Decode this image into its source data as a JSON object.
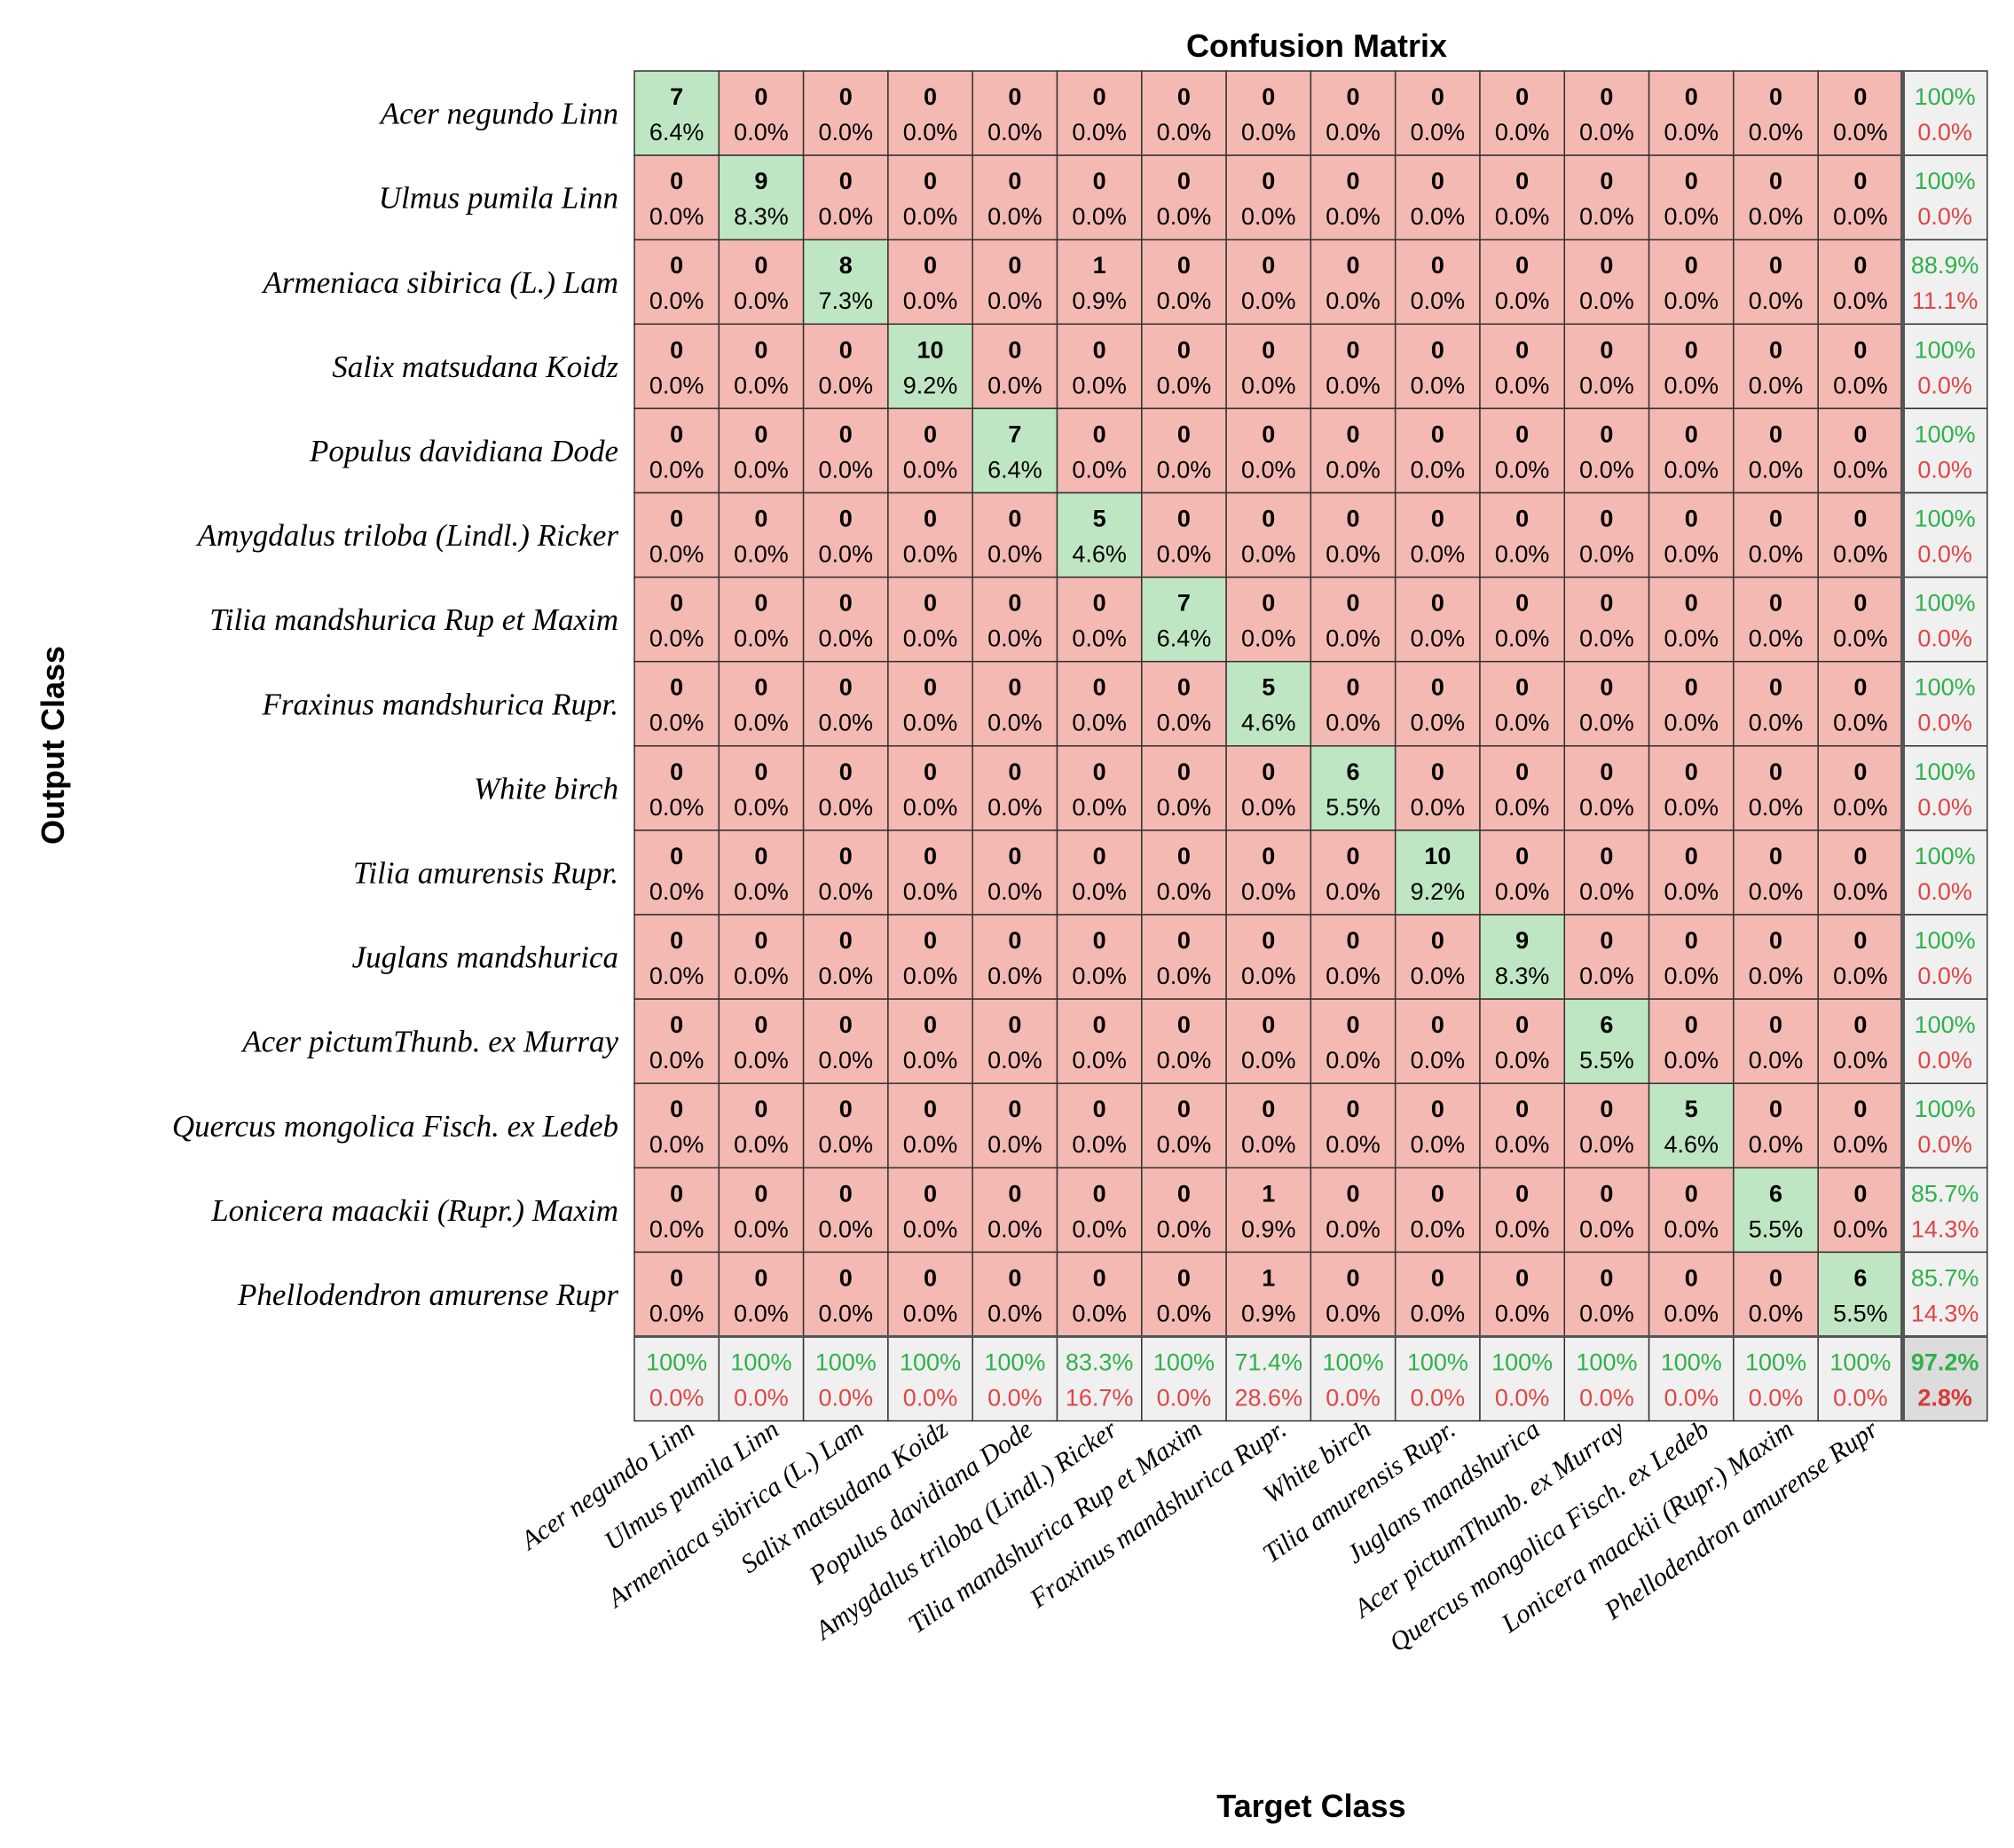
{
  "chart_data": {
    "type": "heatmap",
    "title": "Confusion Matrix",
    "xlabel": "Target Class",
    "ylabel": "Output Class",
    "classes": [
      "Acer negundo Linn",
      "Ulmus pumila Linn",
      "Armeniaca sibirica (L.) Lam",
      "Salix matsudana Koidz",
      "Populus davidiana Dode",
      "Amygdalus triloba (Lindl.) Ricker",
      "Tilia mandshurica Rup et Maxim",
      "Fraxinus mandshurica Rupr.",
      "White birch",
      "Tilia amurensis Rupr.",
      "Juglans mandshurica",
      "Acer pictumThunb. ex Murray",
      "Quercus mongolica Fisch. ex Ledeb",
      "Lonicera maackii (Rupr.) Maxim",
      "Phellodendron amurense Rupr"
    ],
    "total": 109,
    "matrix": [
      [
        7,
        0,
        0,
        0,
        0,
        0,
        0,
        0,
        0,
        0,
        0,
        0,
        0,
        0,
        0
      ],
      [
        0,
        9,
        0,
        0,
        0,
        0,
        0,
        0,
        0,
        0,
        0,
        0,
        0,
        0,
        0
      ],
      [
        0,
        0,
        8,
        0,
        0,
        1,
        0,
        0,
        0,
        0,
        0,
        0,
        0,
        0,
        0
      ],
      [
        0,
        0,
        0,
        10,
        0,
        0,
        0,
        0,
        0,
        0,
        0,
        0,
        0,
        0,
        0
      ],
      [
        0,
        0,
        0,
        0,
        7,
        0,
        0,
        0,
        0,
        0,
        0,
        0,
        0,
        0,
        0
      ],
      [
        0,
        0,
        0,
        0,
        0,
        5,
        0,
        0,
        0,
        0,
        0,
        0,
        0,
        0,
        0
      ],
      [
        0,
        0,
        0,
        0,
        0,
        0,
        7,
        0,
        0,
        0,
        0,
        0,
        0,
        0,
        0
      ],
      [
        0,
        0,
        0,
        0,
        0,
        0,
        0,
        5,
        0,
        0,
        0,
        0,
        0,
        0,
        0
      ],
      [
        0,
        0,
        0,
        0,
        0,
        0,
        0,
        0,
        6,
        0,
        0,
        0,
        0,
        0,
        0
      ],
      [
        0,
        0,
        0,
        0,
        0,
        0,
        0,
        0,
        0,
        10,
        0,
        0,
        0,
        0,
        0
      ],
      [
        0,
        0,
        0,
        0,
        0,
        0,
        0,
        0,
        0,
        0,
        9,
        0,
        0,
        0,
        0
      ],
      [
        0,
        0,
        0,
        0,
        0,
        0,
        0,
        0,
        0,
        0,
        0,
        6,
        0,
        0,
        0
      ],
      [
        0,
        0,
        0,
        0,
        0,
        0,
        0,
        0,
        0,
        0,
        0,
        0,
        5,
        0,
        0
      ],
      [
        0,
        0,
        0,
        0,
        0,
        0,
        0,
        1,
        0,
        0,
        0,
        0,
        0,
        6,
        0
      ],
      [
        0,
        0,
        0,
        0,
        0,
        0,
        0,
        1,
        0,
        0,
        0,
        0,
        0,
        0,
        6
      ]
    ],
    "row_summary": [
      [
        "100%",
        "0.0%"
      ],
      [
        "100%",
        "0.0%"
      ],
      [
        "88.9%",
        "11.1%"
      ],
      [
        "100%",
        "0.0%"
      ],
      [
        "100%",
        "0.0%"
      ],
      [
        "100%",
        "0.0%"
      ],
      [
        "100%",
        "0.0%"
      ],
      [
        "100%",
        "0.0%"
      ],
      [
        "100%",
        "0.0%"
      ],
      [
        "100%",
        "0.0%"
      ],
      [
        "100%",
        "0.0%"
      ],
      [
        "100%",
        "0.0%"
      ],
      [
        "100%",
        "0.0%"
      ],
      [
        "85.7%",
        "14.3%"
      ],
      [
        "85.7%",
        "14.3%"
      ]
    ],
    "col_summary": [
      [
        "100%",
        "0.0%"
      ],
      [
        "100%",
        "0.0%"
      ],
      [
        "100%",
        "0.0%"
      ],
      [
        "100%",
        "0.0%"
      ],
      [
        "100%",
        "0.0%"
      ],
      [
        "83.3%",
        "16.7%"
      ],
      [
        "100%",
        "0.0%"
      ],
      [
        "71.4%",
        "28.6%"
      ],
      [
        "100%",
        "0.0%"
      ],
      [
        "100%",
        "0.0%"
      ],
      [
        "100%",
        "0.0%"
      ],
      [
        "100%",
        "0.0%"
      ],
      [
        "100%",
        "0.0%"
      ],
      [
        "100%",
        "0.0%"
      ],
      [
        "100%",
        "0.0%"
      ]
    ],
    "overall": [
      "97.2%",
      "2.8%"
    ],
    "colors": {
      "correct": "#bfe6c3",
      "error": "#f4b9b3",
      "summary": "#f0f0f0",
      "grid": "#333333",
      "good_text": "#2fb14a",
      "bad_text": "#e04545"
    }
  }
}
